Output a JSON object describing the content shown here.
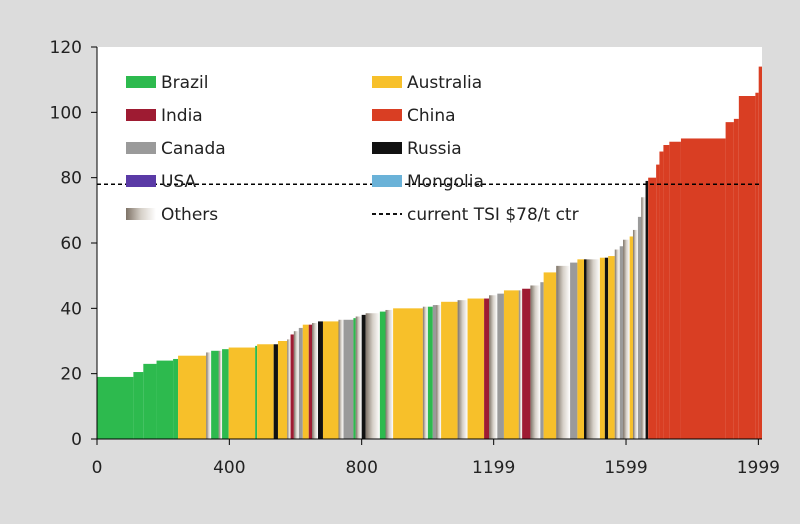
{
  "chart_data": {
    "type": "bar",
    "subtype": "cost-curve",
    "title": "",
    "xlabel": "",
    "ylabel": "",
    "xlim": [
      0,
      2010
    ],
    "ylim": [
      0,
      120
    ],
    "x_ticks": [
      {
        "value": 0,
        "label": "0"
      },
      {
        "value": 400,
        "label": "400"
      },
      {
        "value": 800,
        "label": "800"
      },
      {
        "value": 1199,
        "label": "1199"
      },
      {
        "value": 1599,
        "label": "1599"
      },
      {
        "value": 1999,
        "label": "1999"
      }
    ],
    "y_ticks": [
      {
        "value": 0,
        "label": "0"
      },
      {
        "value": 20,
        "label": "20"
      },
      {
        "value": 40,
        "label": "40"
      },
      {
        "value": 60,
        "label": "60"
      },
      {
        "value": 80,
        "label": "80"
      },
      {
        "value": 100,
        "label": "100"
      },
      {
        "value": 120,
        "label": "120"
      }
    ],
    "grid": false,
    "legend_position": "top-left, inside plot",
    "legend": [
      {
        "label": "Brazil",
        "color": "#2dba4e",
        "kind": "solid"
      },
      {
        "label": "Australia",
        "color": "#f7c02a",
        "kind": "solid"
      },
      {
        "label": "India",
        "color": "#9e1b32",
        "kind": "solid"
      },
      {
        "label": "China",
        "color": "#d93e23",
        "kind": "solid"
      },
      {
        "label": "Canada",
        "color": "#9a9a9a",
        "kind": "solid"
      },
      {
        "label": "Russia",
        "color": "#111111",
        "kind": "solid"
      },
      {
        "label": "USA",
        "color": "#5a3aa6",
        "kind": "solid"
      },
      {
        "label": "Mongolia",
        "color": "#6ab2d8",
        "kind": "solid"
      },
      {
        "label": "Others",
        "color": "#b5a898",
        "kind": "gradient"
      },
      {
        "label": "current TSI $78/t ctr",
        "color": "#111111",
        "kind": "dashed"
      }
    ],
    "reference_line": {
      "y": 78,
      "label": "current TSI $78/t ctr",
      "style": "dashed"
    },
    "colors": {
      "Brazil": "#2dba4e",
      "Australia": "#f7c02a",
      "India": "#9e1b32",
      "China": "#d93e23",
      "Canada": "#9a9a9a",
      "Russia": "#111111",
      "USA": "#5a3aa6",
      "Mongolia": "#6ab2d8",
      "Others": "#b8aa9a"
    },
    "segments": [
      {
        "x0": 0,
        "x1": 110,
        "y": 19,
        "country": "Brazil"
      },
      {
        "x0": 110,
        "x1": 140,
        "y": 20.5,
        "country": "Brazil"
      },
      {
        "x0": 140,
        "x1": 180,
        "y": 23,
        "country": "Brazil"
      },
      {
        "x0": 180,
        "x1": 230,
        "y": 24,
        "country": "Brazil"
      },
      {
        "x0": 230,
        "x1": 245,
        "y": 24.5,
        "country": "Brazil"
      },
      {
        "x0": 245,
        "x1": 330,
        "y": 25.5,
        "country": "Australia"
      },
      {
        "x0": 330,
        "x1": 345,
        "y": 26.5,
        "country": "Others"
      },
      {
        "x0": 345,
        "x1": 368,
        "y": 27,
        "country": "Brazil"
      },
      {
        "x0": 368,
        "x1": 378,
        "y": 27,
        "country": "Others"
      },
      {
        "x0": 378,
        "x1": 398,
        "y": 27.5,
        "country": "Brazil"
      },
      {
        "x0": 398,
        "x1": 478,
        "y": 28,
        "country": "Australia"
      },
      {
        "x0": 478,
        "x1": 484,
        "y": 28.5,
        "country": "Brazil"
      },
      {
        "x0": 484,
        "x1": 534,
        "y": 29,
        "country": "Australia"
      },
      {
        "x0": 534,
        "x1": 547,
        "y": 29,
        "country": "Russia"
      },
      {
        "x0": 547,
        "x1": 575,
        "y": 30,
        "country": "Australia"
      },
      {
        "x0": 575,
        "x1": 585,
        "y": 30.5,
        "country": "Others"
      },
      {
        "x0": 585,
        "x1": 595,
        "y": 32,
        "country": "India"
      },
      {
        "x0": 595,
        "x1": 610,
        "y": 33,
        "country": "Others"
      },
      {
        "x0": 610,
        "x1": 622,
        "y": 34,
        "country": "Canada"
      },
      {
        "x0": 622,
        "x1": 640,
        "y": 35,
        "country": "Australia"
      },
      {
        "x0": 640,
        "x1": 650,
        "y": 35,
        "country": "India"
      },
      {
        "x0": 650,
        "x1": 668,
        "y": 35.5,
        "country": "Others"
      },
      {
        "x0": 668,
        "x1": 683,
        "y": 36,
        "country": "Russia"
      },
      {
        "x0": 683,
        "x1": 730,
        "y": 36,
        "country": "Australia"
      },
      {
        "x0": 730,
        "x1": 745,
        "y": 36.5,
        "country": "Others"
      },
      {
        "x0": 745,
        "x1": 775,
        "y": 36.5,
        "country": "Canada"
      },
      {
        "x0": 775,
        "x1": 782,
        "y": 37,
        "country": "Brazil"
      },
      {
        "x0": 782,
        "x1": 800,
        "y": 37.5,
        "country": "Others"
      },
      {
        "x0": 800,
        "x1": 812,
        "y": 38,
        "country": "Russia"
      },
      {
        "x0": 812,
        "x1": 855,
        "y": 38.5,
        "country": "Others"
      },
      {
        "x0": 855,
        "x1": 872,
        "y": 39,
        "country": "Brazil"
      },
      {
        "x0": 872,
        "x1": 895,
        "y": 39.5,
        "country": "Others"
      },
      {
        "x0": 895,
        "x1": 985,
        "y": 40,
        "country": "Australia"
      },
      {
        "x0": 985,
        "x1": 1000,
        "y": 40.5,
        "country": "Others"
      },
      {
        "x0": 1000,
        "x1": 1015,
        "y": 40.5,
        "country": "Brazil"
      },
      {
        "x0": 1015,
        "x1": 1025,
        "y": 41,
        "country": "Canada"
      },
      {
        "x0": 1025,
        "x1": 1040,
        "y": 41,
        "country": "Others"
      },
      {
        "x0": 1040,
        "x1": 1090,
        "y": 42,
        "country": "Australia"
      },
      {
        "x0": 1090,
        "x1": 1120,
        "y": 42.5,
        "country": "Others"
      },
      {
        "x0": 1120,
        "x1": 1170,
        "y": 43,
        "country": "Australia"
      },
      {
        "x0": 1170,
        "x1": 1185,
        "y": 43,
        "country": "India"
      },
      {
        "x0": 1185,
        "x1": 1210,
        "y": 44,
        "country": "Others"
      },
      {
        "x0": 1210,
        "x1": 1230,
        "y": 44.5,
        "country": "Canada"
      },
      {
        "x0": 1230,
        "x1": 1275,
        "y": 45.5,
        "country": "Australia"
      },
      {
        "x0": 1275,
        "x1": 1285,
        "y": 45.5,
        "country": "Others"
      },
      {
        "x0": 1285,
        "x1": 1310,
        "y": 46,
        "country": "India"
      },
      {
        "x0": 1310,
        "x1": 1340,
        "y": 47,
        "country": "Others"
      },
      {
        "x0": 1340,
        "x1": 1350,
        "y": 48,
        "country": "Canada"
      },
      {
        "x0": 1350,
        "x1": 1388,
        "y": 51,
        "country": "Australia"
      },
      {
        "x0": 1388,
        "x1": 1430,
        "y": 53,
        "country": "Others"
      },
      {
        "x0": 1430,
        "x1": 1452,
        "y": 54,
        "country": "Canada"
      },
      {
        "x0": 1452,
        "x1": 1472,
        "y": 55,
        "country": "Australia"
      },
      {
        "x0": 1472,
        "x1": 1480,
        "y": 55,
        "country": "Russia"
      },
      {
        "x0": 1480,
        "x1": 1520,
        "y": 55,
        "country": "Others"
      },
      {
        "x0": 1520,
        "x1": 1535,
        "y": 55.5,
        "country": "Australia"
      },
      {
        "x0": 1535,
        "x1": 1545,
        "y": 55.5,
        "country": "Russia"
      },
      {
        "x0": 1545,
        "x1": 1565,
        "y": 56,
        "country": "Australia"
      },
      {
        "x0": 1565,
        "x1": 1580,
        "y": 58,
        "country": "Others"
      },
      {
        "x0": 1580,
        "x1": 1590,
        "y": 59,
        "country": "Canada"
      },
      {
        "x0": 1590,
        "x1": 1610,
        "y": 61,
        "country": "Others"
      },
      {
        "x0": 1610,
        "x1": 1620,
        "y": 62,
        "country": "Australia"
      },
      {
        "x0": 1620,
        "x1": 1635,
        "y": 64,
        "country": "Others"
      },
      {
        "x0": 1635,
        "x1": 1645,
        "y": 68,
        "country": "Canada"
      },
      {
        "x0": 1645,
        "x1": 1658,
        "y": 74,
        "country": "Others"
      },
      {
        "x0": 1658,
        "x1": 1666,
        "y": 79,
        "country": "Russia"
      },
      {
        "x0": 1666,
        "x1": 1690,
        "y": 80,
        "country": "China"
      },
      {
        "x0": 1690,
        "x1": 1700,
        "y": 84,
        "country": "China"
      },
      {
        "x0": 1700,
        "x1": 1712,
        "y": 88,
        "country": "China"
      },
      {
        "x0": 1712,
        "x1": 1730,
        "y": 90,
        "country": "China"
      },
      {
        "x0": 1730,
        "x1": 1765,
        "y": 91,
        "country": "China"
      },
      {
        "x0": 1765,
        "x1": 1900,
        "y": 92,
        "country": "China"
      },
      {
        "x0": 1900,
        "x1": 1925,
        "y": 97,
        "country": "China"
      },
      {
        "x0": 1925,
        "x1": 1940,
        "y": 98,
        "country": "China"
      },
      {
        "x0": 1940,
        "x1": 1990,
        "y": 105,
        "country": "China"
      },
      {
        "x0": 1990,
        "x1": 2000,
        "y": 106,
        "country": "China"
      },
      {
        "x0": 2000,
        "x1": 2010,
        "y": 114,
        "country": "China"
      }
    ]
  }
}
